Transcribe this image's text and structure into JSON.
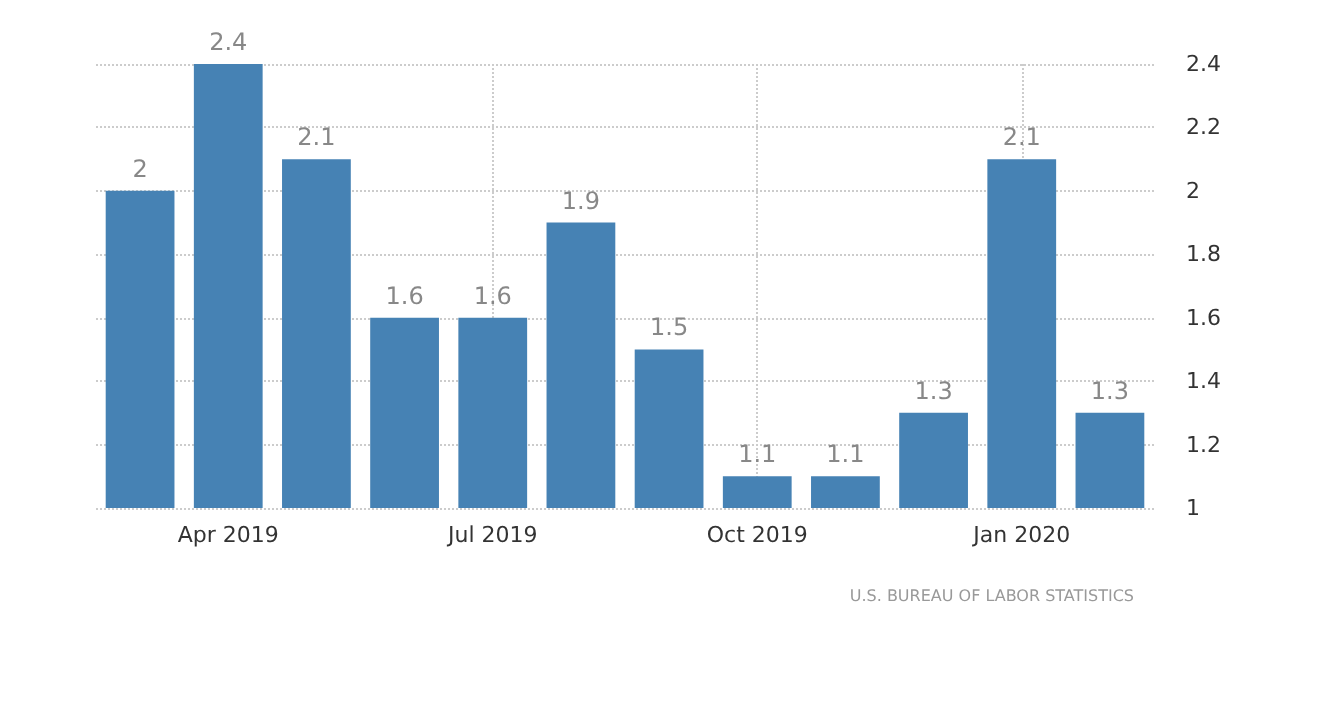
{
  "chart_data": {
    "type": "bar",
    "categories": [
      null,
      "Apr 2019",
      null,
      null,
      "Jul 2019",
      null,
      null,
      "Oct 2019",
      null,
      null,
      "Jan 2020",
      null
    ],
    "values": [
      2,
      2.4,
      2.1,
      1.6,
      1.6,
      1.9,
      1.5,
      1.1,
      1.1,
      1.3,
      2.1,
      1.3
    ],
    "color": "#4682b4",
    "ylim": [
      1,
      2.4
    ],
    "yticks": [
      1,
      1.2,
      1.4,
      1.6,
      1.8,
      2,
      2.2,
      2.4
    ],
    "grid": true,
    "data_labels": true,
    "annotations": [
      "U.S. BUREAU OF LABOR STATISTICS"
    ]
  }
}
